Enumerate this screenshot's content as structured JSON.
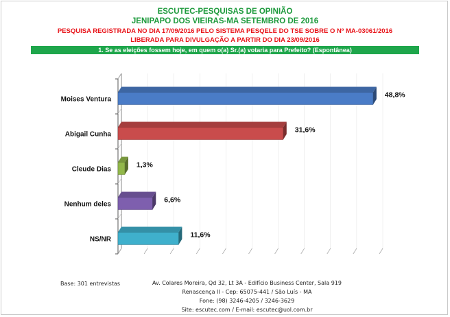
{
  "header": {
    "title": "ESCUTEC-PESQUISAS DE OPINIÃO",
    "subtitle": "JENIPAPO DOS VIEIRAS-MA SETEMBRO DE 2016",
    "registration": "PESQUISA REGISTRADA NO DIA 17/09/2016 PELO SISTEMA PESQELE DO TSE SOBRE O Nº MA-03061/2016",
    "release": "LIBERADA PARA DIVULGAÇÃO A PARTIR DO DIA 23/09/2016"
  },
  "question": "1. Se as eleições fossem hoje, em quem o(a) Sr.(a) votaria para Prefeito? (Espontânea)",
  "chart_data": {
    "type": "bar",
    "orientation": "horizontal",
    "categories": [
      "Moises Ventura",
      "Abigail Cunha",
      "Cleude Dias",
      "Nenhum deles",
      "NS/NR"
    ],
    "values": [
      48.8,
      31.6,
      1.3,
      6.6,
      11.6
    ],
    "value_labels": [
      "48,8%",
      "31,6%",
      "1,3%",
      "6,6%",
      "11,6%"
    ],
    "colors": [
      "#4a7cc7",
      "#c94c4c",
      "#92b84a",
      "#7e5fae",
      "#3fb0cc"
    ],
    "xlim": [
      0,
      50
    ],
    "grid": true,
    "legend": "none"
  },
  "footer": {
    "base": "Base: 301 entrevistas",
    "address1": "Av. Colares Moreira, Qd 32, Lt 3A - Edifício Business Center, Sala 919",
    "address2": "Renascença II - Cep: 65075-441 / São Luís - MA",
    "phone": "Fone: (98) 3246-4205 / 3246-3629",
    "site": "Site: escutec.com / E-mail: escutec@uol.com.br"
  }
}
